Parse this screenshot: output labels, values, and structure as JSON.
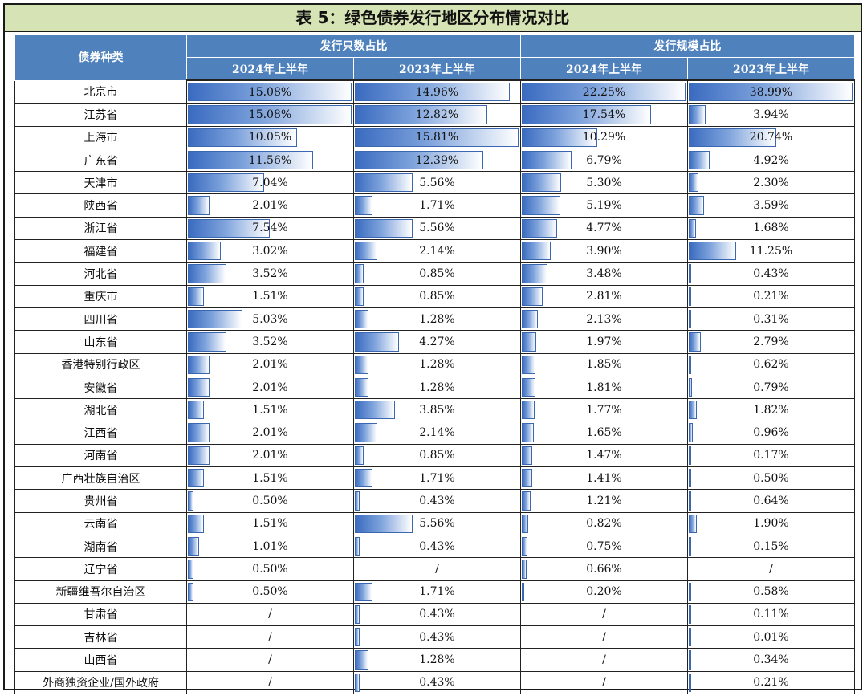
{
  "title": "表 5：绿色债券发行地区分布情况对比",
  "header": {
    "region": "债券种类",
    "group_count": "发行只数占比",
    "group_scale": "发行规模占比",
    "h2024": "2024年上半年",
    "h2023": "2023年上半年"
  },
  "colors": {
    "header_bg": "#4f81bd",
    "title_bg": "#d6e4b5",
    "bar": "#4472c4"
  },
  "chart_data": {
    "type": "table",
    "title": "表 5：绿色债券发行地区分布情况对比",
    "columns": [
      "债券种类",
      "发行只数占比 2024年上半年",
      "发行只数占比 2023年上半年",
      "发行规模占比 2024年上半年",
      "发行规模占比 2023年上半年"
    ],
    "data_bars": true,
    "rows": [
      [
        "北京市",
        "15.08%",
        "14.96%",
        "22.25%",
        "38.99%"
      ],
      [
        "江苏省",
        "15.08%",
        "12.82%",
        "17.54%",
        "3.94%"
      ],
      [
        "上海市",
        "10.05%",
        "15.81%",
        "10.29%",
        "20.74%"
      ],
      [
        "广东省",
        "11.56%",
        "12.39%",
        "6.79%",
        "4.92%"
      ],
      [
        "天津市",
        "7.04%",
        "5.56%",
        "5.30%",
        "2.30%"
      ],
      [
        "陕西省",
        "2.01%",
        "1.71%",
        "5.19%",
        "3.59%"
      ],
      [
        "浙江省",
        "7.54%",
        "5.56%",
        "4.77%",
        "1.68%"
      ],
      [
        "福建省",
        "3.02%",
        "2.14%",
        "3.90%",
        "11.25%"
      ],
      [
        "河北省",
        "3.52%",
        "0.85%",
        "3.48%",
        "0.43%"
      ],
      [
        "重庆市",
        "1.51%",
        "0.85%",
        "2.81%",
        "0.21%"
      ],
      [
        "四川省",
        "5.03%",
        "1.28%",
        "2.13%",
        "0.31%"
      ],
      [
        "山东省",
        "3.52%",
        "4.27%",
        "1.97%",
        "2.79%"
      ],
      [
        "香港特别行政区",
        "2.01%",
        "1.28%",
        "1.85%",
        "0.62%"
      ],
      [
        "安徽省",
        "2.01%",
        "1.28%",
        "1.81%",
        "0.79%"
      ],
      [
        "湖北省",
        "1.51%",
        "3.85%",
        "1.77%",
        "1.82%"
      ],
      [
        "江西省",
        "2.01%",
        "2.14%",
        "1.65%",
        "0.96%"
      ],
      [
        "河南省",
        "2.01%",
        "0.85%",
        "1.47%",
        "0.17%"
      ],
      [
        "广西壮族自治区",
        "1.51%",
        "1.71%",
        "1.41%",
        "0.50%"
      ],
      [
        "贵州省",
        "0.50%",
        "0.43%",
        "1.21%",
        "0.64%"
      ],
      [
        "云南省",
        "1.51%",
        "5.56%",
        "0.82%",
        "1.90%"
      ],
      [
        "湖南省",
        "1.01%",
        "0.43%",
        "0.75%",
        "0.15%"
      ],
      [
        "辽宁省",
        "0.50%",
        "/",
        "0.66%",
        "/"
      ],
      [
        "新疆维吾尔自治区",
        "0.50%",
        "1.71%",
        "0.20%",
        "0.58%"
      ],
      [
        "甘肃省",
        "/",
        "0.43%",
        "/",
        "0.11%"
      ],
      [
        "吉林省",
        "/",
        "0.43%",
        "/",
        "0.01%"
      ],
      [
        "山西省",
        "/",
        "1.28%",
        "/",
        "0.34%"
      ],
      [
        "外商独资企业/国外政府",
        "/",
        "0.43%",
        "/",
        "0.21%"
      ]
    ]
  }
}
